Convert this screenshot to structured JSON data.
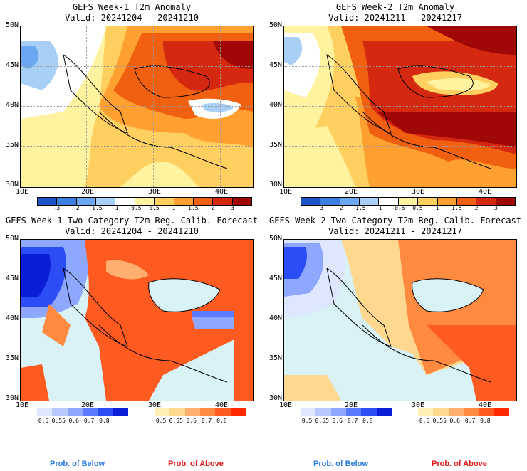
{
  "titles": {
    "p1_line1": "GEFS Week-1 T2m Anomaly",
    "p1_line2": "Valid: 20241204 - 20241210",
    "p2_line1": "GEFS Week-2 T2m Anomaly",
    "p2_line2": "Valid: 20241211 - 20241217",
    "p3_line1": "GEFS Week-1 Two-Category T2m Reg. Calib. Forecast",
    "p3_line2": "Valid: 20241204 - 20241210",
    "p4_line1": "GEFS Week-2 Two-Category T2m Reg. Calib. Forecast",
    "p4_line2": "Valid: 20241211 - 20241217"
  },
  "lat_labels": [
    "50N",
    "45N",
    "40N",
    "35N",
    "30N"
  ],
  "lon_labels": [
    "10E",
    "20E",
    "30E",
    "40E"
  ],
  "anomaly_ticks": [
    "-3",
    "-2",
    "-1.5",
    "-1",
    "-0.5",
    "0.5",
    "1",
    "1.5",
    "2",
    "3"
  ],
  "anomaly_colors": [
    "#1e55c8",
    "#3b7fe0",
    "#6ca8f0",
    "#a8d0f6",
    "#ffffff",
    "#fff3a0",
    "#ffd060",
    "#ffa030",
    "#f06010",
    "#d42810",
    "#a00808"
  ],
  "prob_below_ticks": [
    "0.5",
    "0.55",
    "0.6",
    "0.7",
    "0.8"
  ],
  "prob_above_ticks": [
    "0.5",
    "0.55",
    "0.6",
    "0.7",
    "0.8"
  ],
  "prob_below_colors": [
    "#dde7ff",
    "#b7c9ff",
    "#8ea8ff",
    "#5a7bff",
    "#2c4cf5",
    "#0a1ed8"
  ],
  "prob_above_colors": [
    "#fff0b8",
    "#ffd890",
    "#ffb070",
    "#ff8a40",
    "#ff5a20",
    "#ff2a00"
  ],
  "footer": {
    "below_label": "Prob. of Below",
    "above_label": "Prob. of Above",
    "below_color": "#2a7ae0",
    "above_color": "#e01818"
  }
}
